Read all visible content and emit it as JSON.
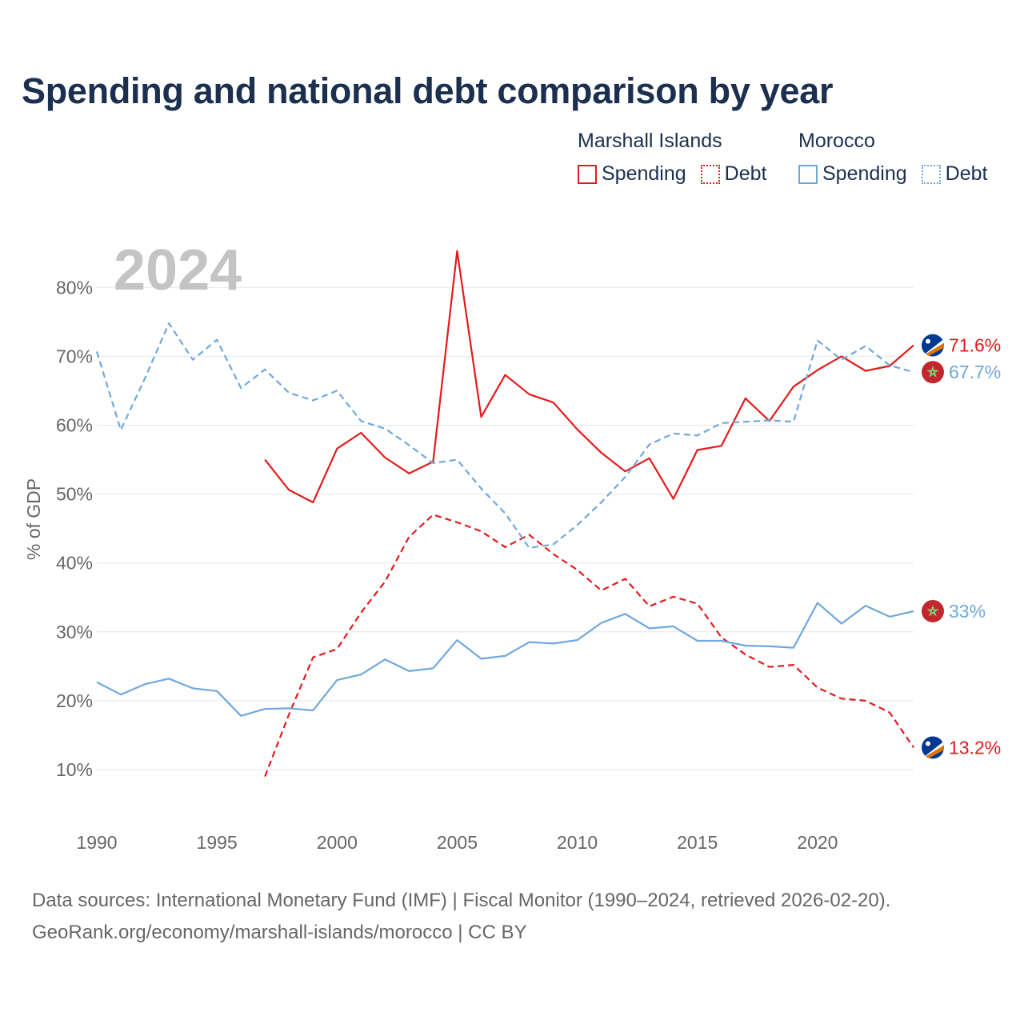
{
  "title": "Spending and national debt comparison by year",
  "year_label": "2024",
  "legend": {
    "groups": [
      {
        "name": "Marshall Islands",
        "color": "#e31a1c",
        "items": [
          {
            "label": "Spending",
            "style": "solid"
          },
          {
            "label": "Debt",
            "style": "dotted"
          }
        ]
      },
      {
        "name": "Morocco",
        "color": "#6fa8dc",
        "items": [
          {
            "label": "Spending",
            "style": "solid"
          },
          {
            "label": "Debt",
            "style": "dotted"
          }
        ]
      }
    ]
  },
  "footer": {
    "line1": "Data sources: International Monetary Fund (IMF) | Fiscal Monitor (1990–2024, retrieved 2026-02-20).",
    "line2": "GeoRank.org/economy/marshall-islands/morocco | CC BY"
  },
  "chart_data": {
    "type": "line",
    "title": "Spending and national debt comparison by year",
    "xlabel": "",
    "ylabel": "% of GDP",
    "xlim": [
      1990,
      2024
    ],
    "ylim": [
      0,
      85
    ],
    "x_ticks": [
      1990,
      1995,
      2000,
      2005,
      2010,
      2015,
      2020
    ],
    "y_ticks": [
      10,
      20,
      30,
      40,
      50,
      60,
      70,
      80
    ],
    "y_tick_labels": [
      "10%",
      "20%",
      "30%",
      "40%",
      "50%",
      "60%",
      "70%",
      "80%"
    ],
    "grid": true,
    "series": [
      {
        "name": "Marshall Islands Spending",
        "country": "Marshall Islands",
        "color": "#e31a1c",
        "dash": "solid",
        "start_year": 1997,
        "values": [
          55.0,
          50.6,
          48.8,
          56.6,
          58.9,
          55.3,
          53.0,
          54.7,
          85.3,
          61.2,
          67.3,
          64.5,
          63.3,
          59.4,
          56.0,
          53.3,
          55.2,
          49.3,
          56.4,
          57.0,
          63.9,
          60.6,
          65.6,
          68.0,
          70.0,
          67.9,
          68.6,
          71.6
        ],
        "end_label": "71.6%",
        "flag": "mh"
      },
      {
        "name": "Marshall Islands Debt",
        "country": "Marshall Islands",
        "color": "#e31a1c",
        "dash": "dashed",
        "start_year": 1997,
        "values": [
          9.0,
          18.0,
          26.3,
          27.5,
          32.8,
          37.3,
          43.8,
          47.0,
          45.9,
          44.6,
          42.3,
          44.1,
          41.3,
          39.0,
          36.0,
          37.7,
          33.7,
          35.1,
          34.1,
          29.2,
          26.7,
          24.9,
          25.2,
          21.9,
          20.3,
          20.0,
          18.3,
          13.2
        ],
        "end_label": "13.2%",
        "flag": "mh"
      },
      {
        "name": "Morocco Spending",
        "country": "Morocco",
        "color": "#6fa8dc",
        "dash": "solid",
        "start_year": 1990,
        "values": [
          22.7,
          20.9,
          22.4,
          23.2,
          21.8,
          21.4,
          17.8,
          18.8,
          18.9,
          18.6,
          23.0,
          23.8,
          26.0,
          24.3,
          24.7,
          28.8,
          26.1,
          26.5,
          28.5,
          28.3,
          28.8,
          31.3,
          32.6,
          30.5,
          30.8,
          28.7,
          28.7,
          28.0,
          27.9,
          27.7,
          34.2,
          31.2,
          33.8,
          32.2,
          33.0
        ],
        "end_label": "33%",
        "flag": "ma"
      },
      {
        "name": "Morocco Debt",
        "country": "Morocco",
        "color": "#6fa8dc",
        "dash": "dashed",
        "start_year": 1990,
        "values": [
          70.7,
          59.3,
          66.8,
          74.8,
          69.5,
          72.4,
          65.4,
          68.1,
          64.7,
          63.6,
          65.0,
          60.6,
          59.5,
          57.1,
          54.5,
          55.0,
          50.8,
          47.2,
          42.2,
          42.7,
          45.5,
          48.8,
          52.5,
          57.2,
          58.8,
          58.5,
          60.3,
          60.5,
          60.7,
          60.5,
          72.3,
          69.5,
          71.5,
          68.7,
          67.7
        ],
        "end_label": "67.7%",
        "flag": "ma"
      }
    ]
  }
}
